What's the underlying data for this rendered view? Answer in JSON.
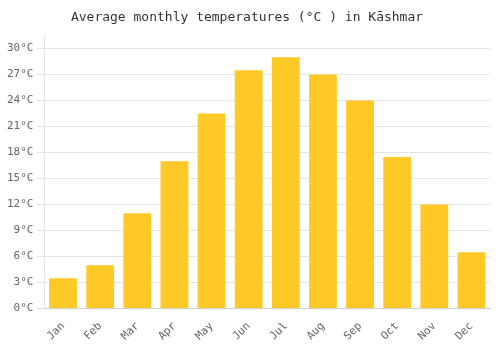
{
  "chart_data": {
    "type": "bar",
    "title": "Average monthly temperatures (°C ) in Kāshmar",
    "categories": [
      "Jan",
      "Feb",
      "Mar",
      "Apr",
      "May",
      "Jun",
      "Jul",
      "Aug",
      "Sep",
      "Oct",
      "Nov",
      "Dec"
    ],
    "values": [
      3.5,
      5.0,
      11.0,
      17.0,
      22.5,
      27.5,
      29.0,
      27.0,
      24.0,
      17.5,
      12.0,
      6.5
    ],
    "color": "#FFCA28",
    "ylim": [
      0,
      31.5
    ],
    "yticks": [
      {
        "value": 0,
        "label": "0°C"
      },
      {
        "value": 3,
        "label": "3°C"
      },
      {
        "value": 6,
        "label": "6°C"
      },
      {
        "value": 9,
        "label": "9°C"
      },
      {
        "value": 12,
        "label": "12°C"
      },
      {
        "value": 15,
        "label": "15°C"
      },
      {
        "value": 18,
        "label": "18°C"
      },
      {
        "value": 21,
        "label": "21°C"
      },
      {
        "value": 24,
        "label": "24°C"
      },
      {
        "value": 27,
        "label": "27°C"
      },
      {
        "value": 30,
        "label": "30°C"
      }
    ],
    "grid": true
  }
}
